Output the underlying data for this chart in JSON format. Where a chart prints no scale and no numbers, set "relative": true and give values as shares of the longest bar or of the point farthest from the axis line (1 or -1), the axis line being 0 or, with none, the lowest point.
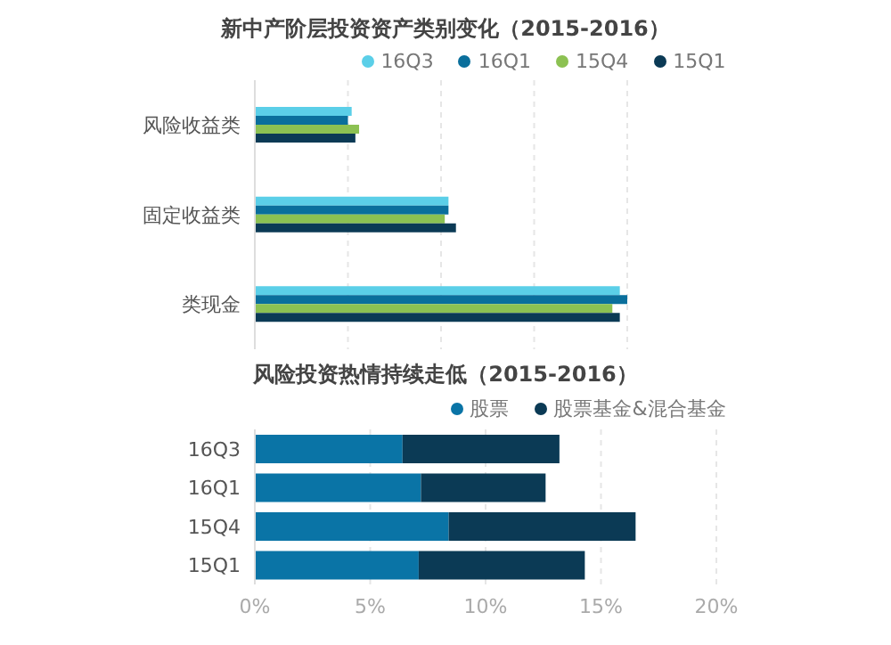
{
  "chart_data": [
    {
      "type": "bar",
      "orientation": "horizontal",
      "title": "新中产阶层投资资产类别变化（2015-2016）",
      "categories": [
        "风险收益类",
        "固定收益类",
        "类现金"
      ],
      "relative": true,
      "grid": "x",
      "legend": "top",
      "series": [
        {
          "name": "16Q3",
          "color": "#5bcfe8",
          "values": [
            0.26,
            0.52,
            0.98
          ]
        },
        {
          "name": "16Q1",
          "color": "#0a6f9c",
          "values": [
            0.25,
            0.52,
            1
          ]
        },
        {
          "name": "15Q4",
          "color": "#8cc152",
          "values": [
            0.28,
            0.51,
            0.96
          ]
        },
        {
          "name": "15Q1",
          "color": "#0b3a55",
          "values": [
            0.27,
            0.54,
            0.98
          ]
        }
      ]
    },
    {
      "type": "bar",
      "orientation": "horizontal",
      "stacked": true,
      "title": "风险投资热情持续走低（2015-2016）",
      "categories": [
        "16Q3",
        "16Q1",
        "15Q4",
        "15Q1"
      ],
      "grid": "x",
      "legend": "top",
      "xlim": [
        0,
        20
      ],
      "xticks": [
        {
          "value": 0,
          "label": "0%"
        },
        {
          "value": 5,
          "label": "5%"
        },
        {
          "value": 10,
          "label": "10%"
        },
        {
          "value": 15,
          "label": "15%"
        },
        {
          "value": 20,
          "label": "20%"
        }
      ],
      "series": [
        {
          "name": "股票",
          "color": "#0a74a6",
          "values": [
            6.4,
            7.2,
            8.4,
            7.1
          ]
        },
        {
          "name": "股票基金&混合基金",
          "color": "#0b3a55",
          "values": [
            6.8,
            5.4,
            8.1,
            7.2
          ]
        }
      ]
    }
  ]
}
